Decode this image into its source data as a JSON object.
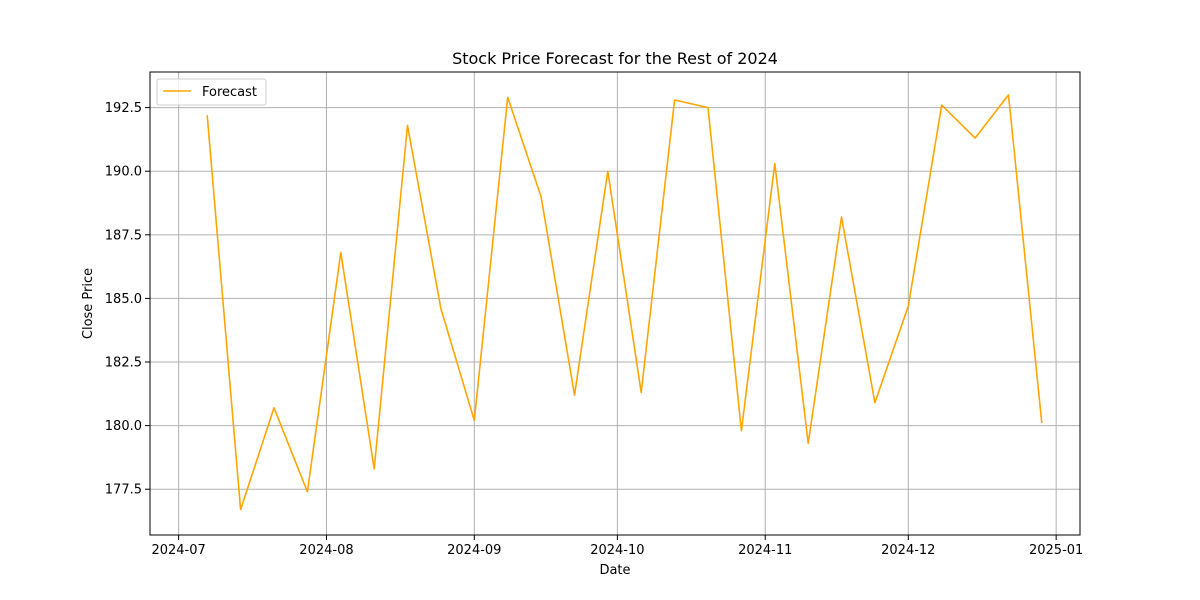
{
  "chart_data": {
    "type": "line",
    "title": "Stock Price Forecast for the Rest of 2024",
    "xlabel": "Date",
    "ylabel": "Close Price",
    "grid": true,
    "legend_position": "upper-left",
    "x_ticks": [
      "2024-07",
      "2024-08",
      "2024-09",
      "2024-10",
      "2024-11",
      "2024-12",
      "2025-01"
    ],
    "y_ticks": [
      "177.5",
      "180.0",
      "182.5",
      "185.0",
      "187.5",
      "190.0",
      "192.5"
    ],
    "xlim": [
      "2024-06-25",
      "2025-01-06"
    ],
    "ylim": [
      175.7,
      193.9
    ],
    "series": [
      {
        "name": "Forecast",
        "color": "#ffa500",
        "x": [
          "2024-07-07",
          "2024-07-14",
          "2024-07-21",
          "2024-07-28",
          "2024-08-04",
          "2024-08-11",
          "2024-08-18",
          "2024-08-25",
          "2024-09-01",
          "2024-09-08",
          "2024-09-15",
          "2024-09-22",
          "2024-09-29",
          "2024-10-06",
          "2024-10-13",
          "2024-10-20",
          "2024-10-27",
          "2024-11-03",
          "2024-11-10",
          "2024-11-17",
          "2024-11-24",
          "2024-12-01",
          "2024-12-08",
          "2024-12-15",
          "2024-12-22",
          "2024-12-29"
        ],
        "values": [
          192.2,
          176.7,
          180.7,
          177.4,
          186.8,
          178.3,
          191.8,
          184.6,
          180.2,
          192.9,
          189.0,
          181.2,
          190.0,
          181.3,
          192.8,
          192.5,
          179.8,
          190.3,
          179.3,
          188.2,
          180.9,
          184.7,
          192.6,
          191.3,
          193.0,
          180.1
        ]
      }
    ]
  }
}
